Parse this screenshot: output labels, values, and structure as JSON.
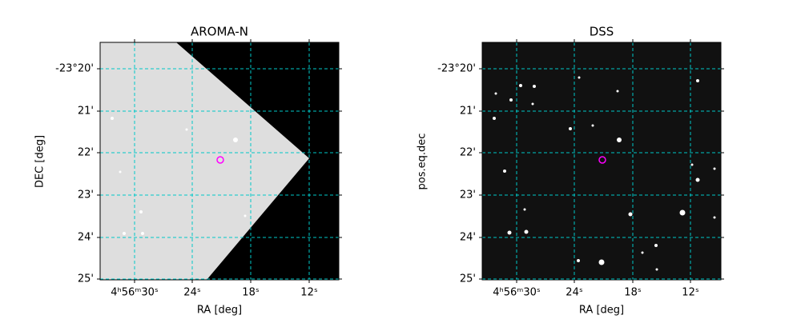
{
  "panels": [
    {
      "title": "AROMA-N",
      "xlabel": "RA [deg]",
      "ylabel": "DEC [deg]",
      "xticks": [
        "4ʰ56ᵐ30ˢ",
        "24ˢ",
        "18ˢ",
        "12ˢ"
      ],
      "yticks": [
        "-23°20'",
        "21'",
        "22'",
        "23'",
        "24'",
        "25'"
      ]
    },
    {
      "title": "DSS",
      "xlabel": "RA [deg]",
      "ylabel": "pos.eq.dec",
      "xticks": [
        "4ʰ56ᵐ30ˢ",
        "24ˢ",
        "18ˢ",
        "12ˢ"
      ],
      "yticks": [
        "-23°20'",
        "21'",
        "22'",
        "23'",
        "24'",
        "25'"
      ]
    }
  ]
}
